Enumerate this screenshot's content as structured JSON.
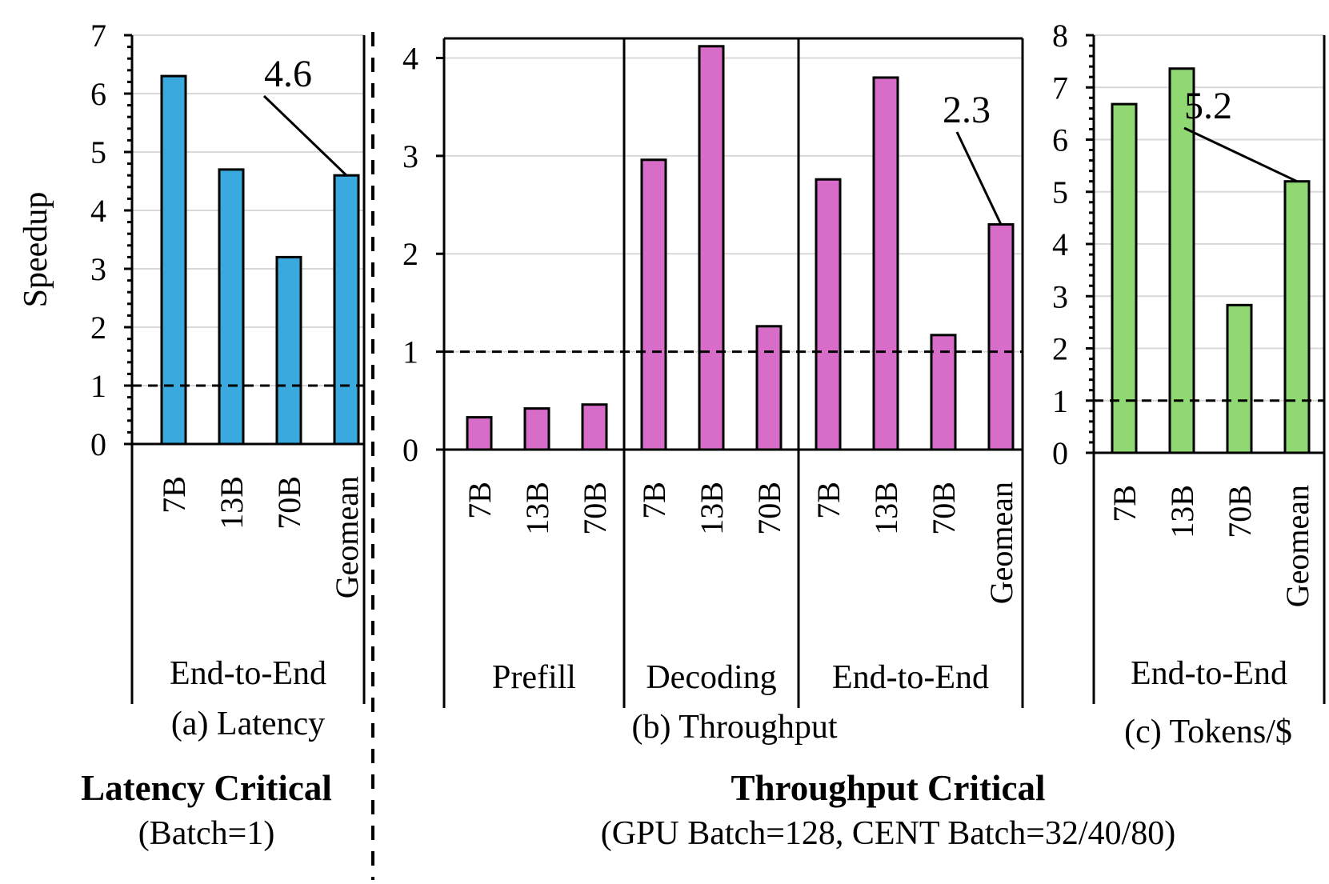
{
  "y_axis_label": "Speedup",
  "divider_left": {
    "title": "Latency Critical",
    "subtitle": "(Batch=1)"
  },
  "divider_right": {
    "title": "Throughput Critical",
    "subtitle": "(GPU Batch=128, CENT Batch=32/40/80)"
  },
  "colors": {
    "latency": "#3aa9dd",
    "throughput": "#d86cc9",
    "tokens": "#8fd872"
  },
  "chart_data": [
    {
      "type": "bar",
      "caption": "(a) Latency",
      "ylim": [
        0,
        7
      ],
      "yticks": [
        0,
        1,
        2,
        3,
        4,
        5,
        6,
        7
      ],
      "reference_line": 1,
      "groups": [
        {
          "label": "End-to-End",
          "categories": [
            "7B",
            "13B",
            "70B",
            "Geomean"
          ],
          "values": [
            6.3,
            4.7,
            3.2,
            4.6
          ]
        }
      ],
      "annotation": {
        "text": "4.6",
        "category": "Geomean"
      }
    },
    {
      "type": "bar",
      "caption": "(b) Throughput",
      "ylim": [
        0,
        4.2
      ],
      "yticks": [
        0,
        1,
        2,
        3,
        4
      ],
      "reference_line": 1,
      "groups": [
        {
          "label": "Prefill",
          "categories": [
            "7B",
            "13B",
            "70B"
          ],
          "values": [
            0.33,
            0.42,
            0.46
          ]
        },
        {
          "label": "Decoding",
          "categories": [
            "7B",
            "13B",
            "70B"
          ],
          "values": [
            2.96,
            4.12,
            1.26
          ]
        },
        {
          "label": "End-to-End",
          "categories": [
            "7B",
            "13B",
            "70B",
            "Geomean"
          ],
          "values": [
            2.76,
            3.8,
            1.17,
            2.3
          ]
        }
      ],
      "annotation": {
        "text": "2.3",
        "category": "Geomean"
      }
    },
    {
      "type": "bar",
      "caption": "(c) Tokens/$",
      "ylim": [
        0,
        8
      ],
      "yticks": [
        0,
        1,
        2,
        3,
        4,
        5,
        6,
        7,
        8
      ],
      "reference_line": 1,
      "groups": [
        {
          "label": "End-to-End",
          "categories": [
            "7B",
            "13B",
            "70B",
            "Geomean"
          ],
          "values": [
            6.68,
            7.36,
            2.83,
            5.2
          ]
        }
      ],
      "annotation": {
        "text": "5.2",
        "category": "Geomean"
      }
    }
  ]
}
